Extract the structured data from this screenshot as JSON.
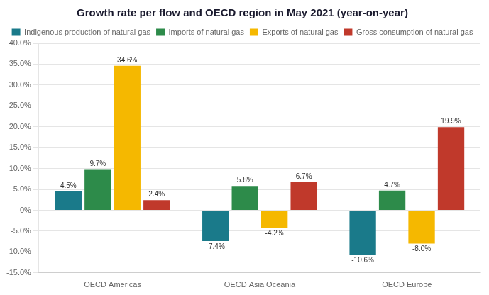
{
  "chart_data": {
    "type": "bar",
    "title": "Growth rate per flow and OECD region in May 2021 (year-on-year)",
    "categories": [
      "OECD Americas",
      "OECD Asia Oceania",
      "OECD Europe"
    ],
    "series": [
      {
        "name": "Indigenous production of natural gas",
        "color": "#1a7a8a",
        "values": [
          4.5,
          -7.4,
          -10.6
        ],
        "value_labels": [
          "4.5%",
          "-7.4%",
          "-10.6%"
        ]
      },
      {
        "name": "Imports of natural gas",
        "color": "#2d8b4a",
        "values": [
          9.7,
          5.8,
          4.7
        ],
        "value_labels": [
          "9.7%",
          "5.8%",
          "4.7%"
        ]
      },
      {
        "name": "Exports of natural gas",
        "color": "#f5b800",
        "values": [
          34.6,
          -4.2,
          -8.0
        ],
        "value_labels": [
          "34.6%",
          "-4.2%",
          "-8.0%"
        ]
      },
      {
        "name": "Gross consumption of natural gas",
        "color": "#c0392b",
        "values": [
          2.4,
          6.7,
          19.9
        ],
        "value_labels": [
          "2.4%",
          "6.7%",
          "19.9%"
        ]
      }
    ],
    "ylim": [
      -15.0,
      40.0
    ],
    "yticks": [
      {
        "value": -15.0,
        "label": "-15.0%"
      },
      {
        "value": -10.0,
        "label": "-10.0%"
      },
      {
        "value": -5.0,
        "label": "-5.0%"
      },
      {
        "value": 0.0,
        "label": "0%"
      },
      {
        "value": 5.0,
        "label": "5.0%"
      },
      {
        "value": 10.0,
        "label": "10.0%"
      },
      {
        "value": 15.0,
        "label": "15.0%"
      },
      {
        "value": 20.0,
        "label": "20.0%"
      },
      {
        "value": 25.0,
        "label": "25.0%"
      },
      {
        "value": 30.0,
        "label": "30.0%"
      },
      {
        "value": 35.0,
        "label": "35.0%"
      },
      {
        "value": 40.0,
        "label": "40.0%"
      }
    ],
    "grid": true,
    "legend": "top",
    "data_labels": true
  }
}
